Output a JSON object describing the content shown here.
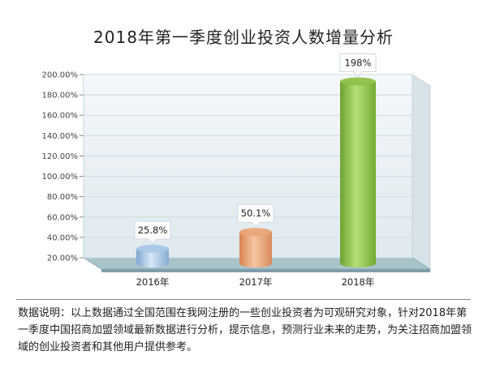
{
  "title": "2018年第一季度创业投资人数增量分析",
  "footnote": "数据说明：以上数据通过全国范围在我网注册的一些创业投资者为可观研究对象，针对2018年第一季度中国招商加盟领域最新数据进行分析，提示信息，预测行业未来的走势，为关注招商加盟领域的创业投资者和其他用户提供参考。",
  "colors": {
    "bar_2016": "#a9c8e6",
    "bar_2017": "#e9a679",
    "bar_2018": "#8fc04a",
    "wall": "#e6eef3",
    "floor": "#9ab8c2"
  },
  "chart_data": {
    "type": "bar",
    "title": "2018年第一季度创业投资人数增量分析",
    "categories": [
      "2016年",
      "2017年",
      "2018年"
    ],
    "values": [
      25.8,
      50.1,
      198
    ],
    "data_labels": [
      "25.8%",
      "50.1%",
      "198%"
    ],
    "yticks": [
      "20.00%",
      "40.00%",
      "60.00%",
      "80.00%",
      "100.00%",
      "120.00%",
      "140.00%",
      "160.00%",
      "180.00%",
      "200.00%"
    ],
    "ylim": [
      20,
      200
    ],
    "xlabel": "",
    "ylabel": "",
    "grid": true
  }
}
